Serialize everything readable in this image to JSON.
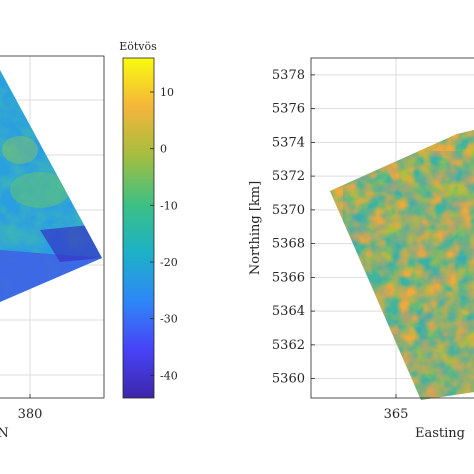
{
  "chart_data": [
    {
      "type": "heatmap",
      "title": "",
      "xlabel": "N",
      "ylabel": "",
      "x_ticks": [
        380
      ],
      "y_ticks": [],
      "grid": true,
      "note": "left panel cropped at image edge"
    },
    {
      "type": "colorbar",
      "label": "Eötvös",
      "ticks": [
        10,
        0,
        -10,
        -20,
        -30,
        -40
      ],
      "range": [
        -44,
        16
      ],
      "colormap": [
        "#3e26a8",
        "#4743f8",
        "#2e87f7",
        "#1cb1c7",
        "#3ec083",
        "#a5be3e",
        "#f5b53b",
        "#f9fb0e"
      ]
    },
    {
      "type": "heatmap",
      "title": "",
      "xlabel": "Easting",
      "ylabel": "Northing [km]",
      "x_ticks": [
        365
      ],
      "y_ticks": [
        5378,
        5376,
        5374,
        5372,
        5370,
        5368,
        5366,
        5364,
        5362,
        5360
      ],
      "grid": true,
      "note": "right panel cropped at image edge"
    }
  ]
}
